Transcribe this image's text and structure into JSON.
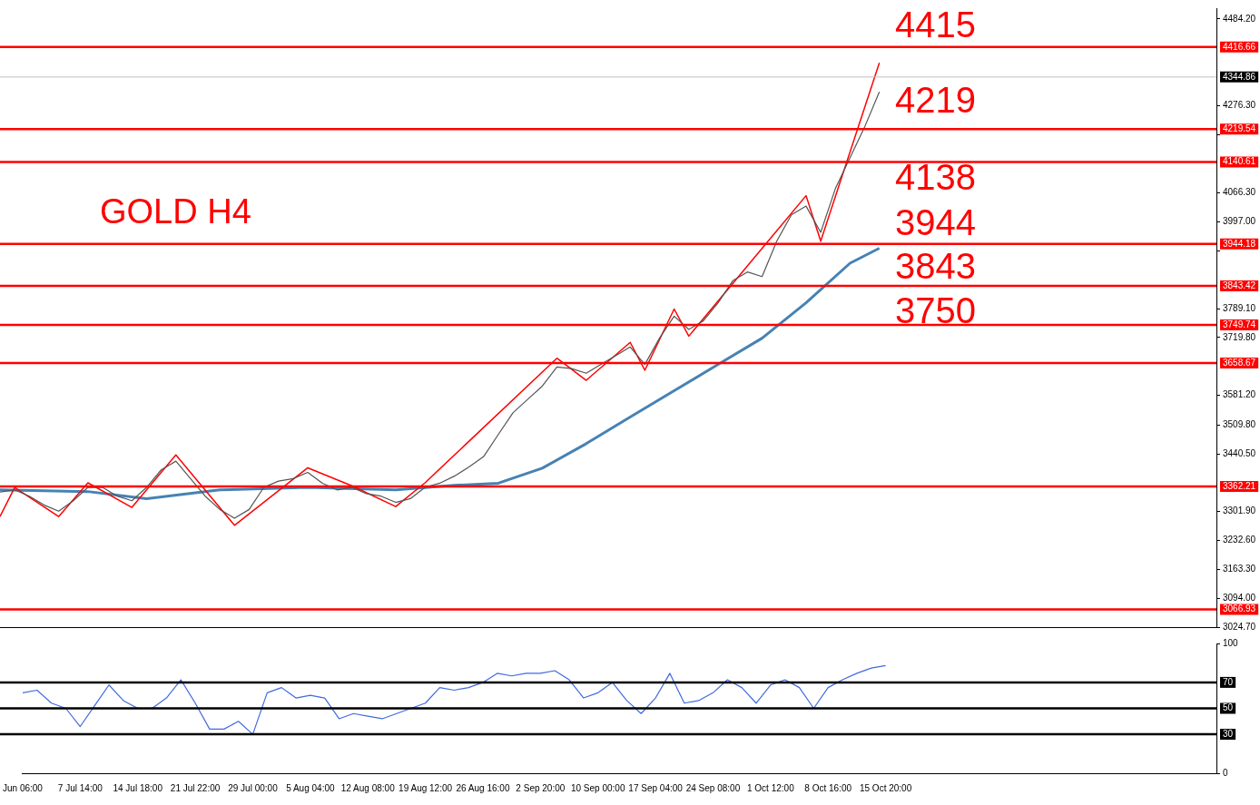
{
  "chart_data": [
    {
      "type": "line",
      "annotations": [
        "GOLD H4",
        "4415",
        "4219",
        "4138",
        "3944",
        "3843",
        "3750"
      ],
      "categories": [
        null,
        null,
        null,
        null,
        null,
        null,
        null,
        null,
        null,
        null,
        null,
        null,
        null,
        null,
        null,
        null,
        null,
        null,
        null,
        null,
        null,
        null,
        null,
        null,
        null,
        null,
        null,
        null,
        null,
        null,
        null,
        null,
        null,
        null,
        null,
        null,
        null,
        null,
        null,
        null,
        null,
        null,
        null,
        null,
        null,
        null,
        null,
        null,
        null,
        null,
        null,
        null,
        null,
        null,
        null,
        null,
        null,
        null,
        null,
        null,
        null,
        null,
        null,
        null,
        null,
        null,
        null,
        null,
        null,
        null,
        null,
        null,
        null,
        null,
        null,
        null,
        null,
        null,
        null,
        null,
        null,
        null,
        null,
        null
      ],
      "series": [
        {
          "color": "#555555",
          "values": [
            3349,
            3354,
            3339,
            3318,
            3303,
            3328,
            3360,
            3360,
            3339,
            3328,
            3360,
            3402,
            3423,
            3381,
            3339,
            3307,
            3286,
            3307,
            3360,
            3375,
            3381,
            3396,
            3370,
            3354,
            3360,
            3345,
            3339,
            3324,
            3333,
            3360,
            3370,
            3387,
            3409,
            3434,
            3487,
            3539,
            3571,
            3603,
            3649,
            3645,
            3634,
            3655,
            3676,
            3697,
            3655,
            3718,
            3771,
            3739,
            3760,
            3803,
            3856,
            3877,
            3866,
            3951,
            4014,
            4035,
            3972,
            4077,
            4151,
            4225,
            4309,
            null,
            null,
            null,
            null,
            null,
            null,
            null,
            null,
            null,
            null,
            null,
            null,
            null,
            null,
            null,
            null,
            null,
            null,
            null,
            null,
            null,
            null,
            null
          ]
        },
        {
          "color": "#ff0000",
          "values": [
            3290,
            3360,
            null,
            null,
            3290,
            null,
            3371,
            null,
            null,
            3312,
            null,
            null,
            3438,
            null,
            null,
            null,
            3269,
            null,
            null,
            null,
            null,
            3407,
            null,
            null,
            3364,
            null,
            null,
            3314,
            null,
            3371,
            null,
            null,
            null,
            null,
            null,
            null,
            null,
            null,
            3670,
            null,
            3617,
            null,
            null,
            3708,
            3641,
            null,
            3788,
            3723,
            null,
            null,
            null,
            null,
            null,
            null,
            null,
            4060,
            3951,
            null,
            null,
            null,
            4379,
            null,
            null,
            null,
            null,
            null,
            null,
            null,
            null,
            null,
            null,
            null,
            null,
            null,
            null,
            null,
            null,
            null,
            null,
            null,
            null,
            null,
            null,
            null
          ]
        },
        {
          "color": "#4682b4",
          "values": [
            3354,
            null,
            null,
            null,
            null,
            null,
            3350,
            null,
            null,
            null,
            3333,
            null,
            null,
            null,
            null,
            3354,
            null,
            null,
            null,
            null,
            null,
            3360,
            null,
            null,
            null,
            null,
            null,
            3354,
            null,
            null,
            null,
            3365,
            null,
            null,
            3370,
            null,
            null,
            3406,
            null,
            null,
            3465,
            null,
            null,
            3529,
            null,
            null,
            3592,
            null,
            null,
            3655,
            null,
            null,
            3718,
            null,
            null,
            3803,
            null,
            null,
            3898,
            null,
            3934,
            null,
            null,
            null,
            null,
            null,
            null,
            null,
            null,
            null,
            null,
            null,
            null,
            null,
            null,
            null,
            null,
            null,
            null,
            null,
            null,
            null,
            null,
            null
          ]
        }
      ],
      "ylim": [
        3024.7,
        4510
      ],
      "yticks": [
        {
          "value": 4484.2,
          "label": "4484.20"
        },
        {
          "value": 4276.3,
          "label": "4276.30"
        },
        {
          "value": 4207,
          "label": null
        },
        {
          "value": 4066.3,
          "label": "4066.30"
        },
        {
          "value": 3997,
          "label": "3997.00"
        },
        {
          "value": 3927.7,
          "label": null
        },
        {
          "value": 3789.1,
          "label": "3789.10"
        },
        {
          "value": 3719.8,
          "label": "3719.80"
        },
        {
          "value": 3581.2,
          "label": "3581.20"
        },
        {
          "value": 3509.8,
          "label": "3509.80"
        },
        {
          "value": 3440.5,
          "label": "3440.50"
        },
        {
          "value": 3301.9,
          "label": "3301.90"
        },
        {
          "value": 3232.6,
          "label": "3232.60"
        },
        {
          "value": 3163.3,
          "label": "3163.30"
        },
        {
          "value": 3094,
          "label": "3094.00"
        },
        {
          "value": 3024.7,
          "label": "3024.70"
        }
      ],
      "ref_lines": [
        {
          "axis": "y",
          "value": 4416.66,
          "label": "4416.66",
          "color": "#ff0000"
        },
        {
          "axis": "y",
          "value": 4344.86,
          "label": "4344.86",
          "color": "#c0c0c0"
        },
        {
          "axis": "y",
          "value": 4219.54,
          "label": "4219.54",
          "color": "#ff0000"
        },
        {
          "axis": "y",
          "value": 4140.61,
          "label": "4140.61",
          "color": "#ff0000"
        },
        {
          "axis": "y",
          "value": 3944.18,
          "label": "3944.18",
          "color": "#ff0000"
        },
        {
          "axis": "y",
          "value": 3843.42,
          "label": "3843.42",
          "color": "#ff0000"
        },
        {
          "axis": "y",
          "value": 3749.74,
          "label": "3749.74",
          "color": "#ff0000"
        },
        {
          "axis": "y",
          "value": 3658.67,
          "label": "3658.67",
          "color": "#ff0000"
        },
        {
          "axis": "y",
          "value": 3362.21,
          "label": "3362.21",
          "color": "#ff0000"
        },
        {
          "axis": "y",
          "value": 3066.93,
          "label": "3066.93",
          "color": "#ff0000"
        }
      ],
      "grid": false,
      "legend": false,
      "marker": "none",
      "tick_labels": "y"
    },
    {
      "type": "line",
      "categories": [
        "Jun 06:00",
        null,
        null,
        null,
        "7 Jul 14:00",
        null,
        null,
        null,
        "14 Jul 18:00",
        null,
        null,
        null,
        "21 Jul 22:00",
        null,
        null,
        null,
        "29 Jul 00:00",
        null,
        null,
        null,
        "5 Aug 04:00",
        null,
        null,
        null,
        "12 Aug 08:00",
        null,
        null,
        null,
        "19 Aug 12:00",
        null,
        null,
        null,
        "26 Aug 16:00",
        null,
        null,
        null,
        "2 Sep 20:00",
        null,
        null,
        null,
        "10 Sep 00:00",
        null,
        null,
        null,
        "17 Sep 04:00",
        null,
        null,
        null,
        "24 Sep 08:00",
        null,
        null,
        null,
        "1 Oct 12:00",
        null,
        null,
        null,
        "8 Oct 16:00",
        null,
        null,
        null,
        "15 Oct 20:00",
        null,
        null,
        null,
        null,
        null,
        null,
        null,
        null,
        null,
        null,
        null,
        null,
        null,
        null,
        null,
        null,
        null,
        null,
        null,
        null,
        null,
        null,
        null
      ],
      "series": [
        {
          "color": "#4169e1",
          "values": [
            62,
            64,
            54,
            50,
            36,
            52,
            68,
            56,
            50,
            50,
            58,
            72,
            54,
            34,
            34,
            40,
            30,
            62,
            66,
            58,
            60,
            58,
            42,
            46,
            44,
            42,
            46,
            50,
            54,
            66,
            64,
            66,
            70,
            77,
            75,
            77,
            77,
            79,
            72,
            58,
            62,
            70,
            56,
            46,
            58,
            77,
            54,
            56,
            62,
            72,
            66,
            54,
            68,
            72,
            66,
            50,
            66,
            72,
            77,
            81,
            83,
            null,
            null,
            null,
            null,
            null,
            null,
            null,
            null,
            null,
            null,
            null,
            null,
            null,
            null,
            null,
            null,
            null,
            null,
            null,
            null,
            null,
            null,
            null
          ]
        }
      ],
      "ylim": [
        0,
        100
      ],
      "yticks": [
        0,
        100
      ],
      "ref_lines": [
        {
          "axis": "y",
          "value": 70,
          "label": "70",
          "color": "#000000"
        },
        {
          "axis": "y",
          "value": 50,
          "label": "50",
          "color": "#000000"
        },
        {
          "axis": "y",
          "value": 30,
          "label": "30",
          "color": "#000000"
        }
      ],
      "grid": false,
      "legend": false,
      "marker": "none"
    }
  ]
}
